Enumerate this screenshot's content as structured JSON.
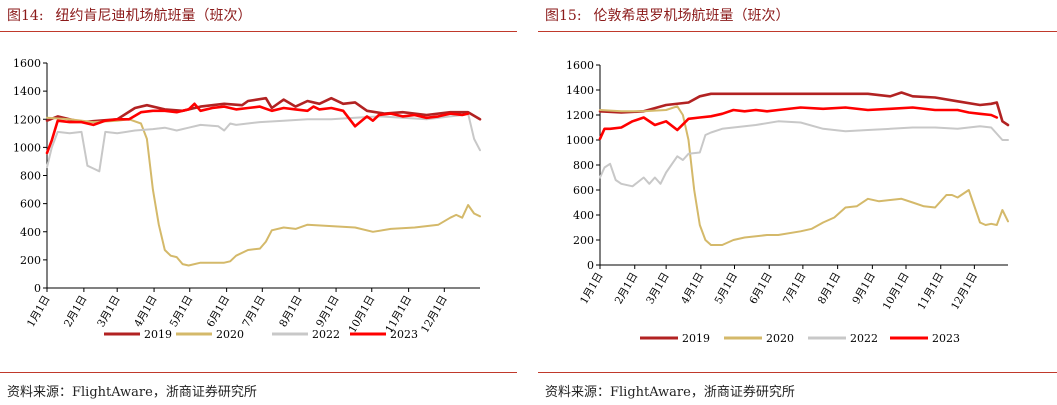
{
  "charts": [
    {
      "figure_label": "图14:",
      "title": "纽约肯尼迪机场航班量（班次）",
      "source": "资料来源：FlightAware，浙商证券研究所"
    },
    {
      "figure_label": "图15:",
      "title": "伦敦希思罗机场航班量（班次）",
      "source": "资料来源：FlightAware，浙商证券研究所"
    }
  ],
  "chart_data": [
    {
      "type": "line",
      "title": "纽约肯尼迪机场航班量（班次）",
      "xlabel": "",
      "ylabel": "",
      "ylim": [
        0,
        1600
      ],
      "yticks": [
        0,
        200,
        400,
        600,
        800,
        1000,
        1200,
        1400,
        1600
      ],
      "xlim": [
        1,
        365
      ],
      "x_tick_labels": [
        "1月1日",
        "2月1日",
        "3月1日",
        "4月1日",
        "5月1日",
        "6月1日",
        "7月1日",
        "8月1日",
        "9月1日",
        "10月1日",
        "11月1日",
        "12月1日"
      ],
      "x_tick_days": [
        1,
        32,
        60,
        91,
        121,
        152,
        182,
        213,
        244,
        274,
        305,
        335
      ],
      "legend_position": "bottom",
      "series": [
        {
          "name": "2019",
          "color": "#b22222",
          "x": [
            1,
            10,
            20,
            31,
            45,
            60,
            75,
            85,
            100,
            115,
            130,
            150,
            165,
            170,
            185,
            190,
            200,
            210,
            220,
            230,
            240,
            250,
            260,
            270,
            285,
            300,
            320,
            340,
            355,
            365
          ],
          "y": [
            1190,
            1220,
            1200,
            1180,
            1190,
            1200,
            1280,
            1300,
            1270,
            1260,
            1290,
            1310,
            1300,
            1330,
            1350,
            1280,
            1340,
            1290,
            1330,
            1310,
            1350,
            1310,
            1320,
            1260,
            1240,
            1250,
            1230,
            1250,
            1250,
            1200
          ]
        },
        {
          "name": "2020",
          "color": "#d4b96a",
          "x": [
            1,
            20,
            40,
            60,
            70,
            80,
            85,
            90,
            95,
            100,
            105,
            110,
            115,
            120,
            130,
            150,
            155,
            160,
            170,
            180,
            185,
            190,
            200,
            210,
            220,
            240,
            260,
            275,
            290,
            310,
            330,
            340,
            345,
            350,
            355,
            360,
            365
          ],
          "y": [
            1210,
            1200,
            1180,
            1190,
            1200,
            1170,
            1060,
            700,
            450,
            270,
            230,
            220,
            170,
            160,
            180,
            180,
            190,
            230,
            270,
            280,
            330,
            410,
            430,
            420,
            450,
            440,
            430,
            400,
            420,
            430,
            450,
            500,
            520,
            500,
            590,
            530,
            510
          ]
        },
        {
          "name": "2022",
          "color": "#c8c8c8",
          "x": [
            1,
            5,
            10,
            20,
            30,
            35,
            40,
            45,
            50,
            60,
            75,
            90,
            100,
            110,
            120,
            130,
            145,
            150,
            155,
            160,
            180,
            200,
            220,
            240,
            260,
            280,
            300,
            320,
            340,
            350,
            355,
            360,
            365
          ],
          "y": [
            860,
            1000,
            1110,
            1100,
            1110,
            870,
            850,
            830,
            1110,
            1100,
            1120,
            1130,
            1140,
            1120,
            1140,
            1160,
            1150,
            1120,
            1170,
            1160,
            1180,
            1190,
            1200,
            1200,
            1210,
            1220,
            1210,
            1200,
            1220,
            1230,
            1240,
            1060,
            980
          ]
        },
        {
          "name": "2023",
          "color": "#ff0000",
          "x": [
            1,
            5,
            10,
            20,
            30,
            40,
            50,
            60,
            70,
            80,
            90,
            100,
            110,
            120,
            125,
            130,
            140,
            150,
            160,
            170,
            180,
            190,
            200,
            210,
            220,
            225,
            230,
            240,
            250,
            260,
            270,
            275,
            280,
            290,
            300,
            310,
            320,
            330,
            340,
            350,
            355
          ],
          "y": [
            960,
            1050,
            1190,
            1180,
            1180,
            1160,
            1190,
            1200,
            1200,
            1250,
            1260,
            1260,
            1250,
            1270,
            1310,
            1260,
            1280,
            1290,
            1270,
            1280,
            1290,
            1260,
            1280,
            1270,
            1260,
            1290,
            1270,
            1280,
            1260,
            1150,
            1220,
            1190,
            1230,
            1240,
            1220,
            1230,
            1210,
            1220,
            1240,
            1230,
            1240
          ]
        }
      ]
    },
    {
      "type": "line",
      "title": "伦敦希思罗机场航班量（班次）",
      "xlabel": "",
      "ylabel": "",
      "ylim": [
        0,
        1600
      ],
      "yticks": [
        0,
        200,
        400,
        600,
        800,
        1000,
        1200,
        1400,
        1600
      ],
      "xlim": [
        1,
        365
      ],
      "x_tick_labels": [
        "1月1日",
        "2月1日",
        "3月1日",
        "4月1日",
        "5月1日",
        "6月1日",
        "7月1日",
        "8月1日",
        "9月1日",
        "10月1日",
        "11月1日",
        "12月1日"
      ],
      "x_tick_days": [
        1,
        32,
        60,
        91,
        121,
        152,
        182,
        213,
        244,
        274,
        305,
        335
      ],
      "legend_position": "bottom",
      "series": [
        {
          "name": "2019",
          "color": "#b22222",
          "x": [
            1,
            20,
            40,
            60,
            80,
            90,
            100,
            120,
            150,
            180,
            210,
            240,
            260,
            270,
            280,
            300,
            320,
            340,
            350,
            355,
            360,
            365
          ],
          "y": [
            1230,
            1220,
            1230,
            1280,
            1300,
            1350,
            1370,
            1370,
            1370,
            1370,
            1370,
            1370,
            1350,
            1380,
            1350,
            1340,
            1310,
            1280,
            1290,
            1300,
            1150,
            1120
          ]
        },
        {
          "name": "2020",
          "color": "#d4b96a",
          "x": [
            1,
            20,
            40,
            60,
            70,
            75,
            80,
            85,
            90,
            95,
            100,
            110,
            120,
            130,
            150,
            160,
            180,
            190,
            200,
            210,
            220,
            230,
            240,
            250,
            260,
            270,
            280,
            290,
            300,
            310,
            315,
            320,
            330,
            340,
            345,
            350,
            355,
            360,
            365
          ],
          "y": [
            1240,
            1230,
            1230,
            1240,
            1270,
            1200,
            1000,
            600,
            320,
            200,
            160,
            160,
            200,
            220,
            240,
            240,
            270,
            290,
            340,
            380,
            460,
            470,
            530,
            510,
            520,
            530,
            500,
            470,
            460,
            560,
            560,
            540,
            600,
            340,
            320,
            330,
            320,
            440,
            350
          ]
        },
        {
          "name": "2022",
          "color": "#c8c8c8",
          "x": [
            1,
            5,
            10,
            15,
            20,
            30,
            40,
            45,
            50,
            55,
            60,
            70,
            75,
            80,
            90,
            95,
            100,
            110,
            120,
            130,
            140,
            160,
            180,
            200,
            220,
            240,
            260,
            280,
            300,
            320,
            340,
            350,
            360,
            365
          ],
          "y": [
            700,
            780,
            810,
            680,
            650,
            630,
            700,
            650,
            700,
            650,
            740,
            870,
            840,
            890,
            900,
            1040,
            1060,
            1090,
            1100,
            1110,
            1120,
            1150,
            1140,
            1090,
            1070,
            1080,
            1090,
            1100,
            1100,
            1090,
            1110,
            1100,
            1000,
            1000
          ]
        },
        {
          "name": "2023",
          "color": "#ff0000",
          "x": [
            1,
            5,
            10,
            20,
            30,
            40,
            50,
            60,
            70,
            80,
            90,
            100,
            110,
            120,
            130,
            140,
            150,
            160,
            180,
            200,
            220,
            240,
            260,
            280,
            300,
            320,
            330,
            340,
            350,
            355
          ],
          "y": [
            1010,
            1090,
            1090,
            1100,
            1150,
            1180,
            1120,
            1150,
            1080,
            1170,
            1180,
            1190,
            1210,
            1240,
            1230,
            1240,
            1230,
            1240,
            1260,
            1250,
            1260,
            1240,
            1250,
            1260,
            1240,
            1240,
            1220,
            1210,
            1200,
            1180
          ]
        }
      ]
    }
  ]
}
